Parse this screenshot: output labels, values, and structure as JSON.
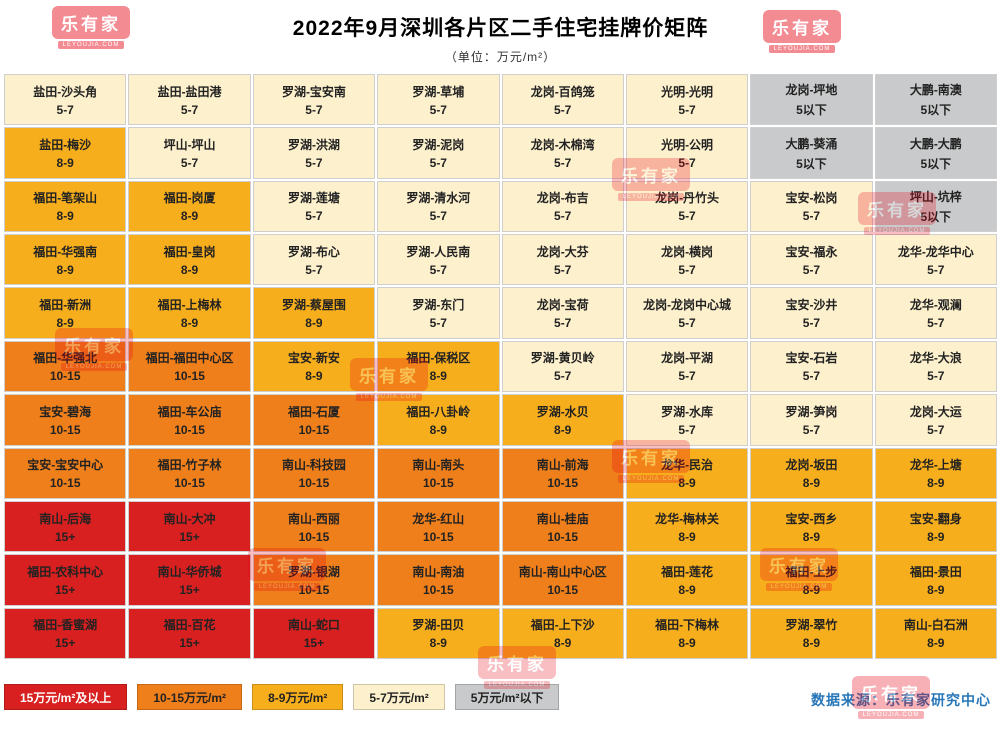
{
  "title": "2022年9月深圳各片区二手住宅挂牌价矩阵",
  "subtitle": "（单位：万元/m²）",
  "source": "数据来源：乐有家研究中心",
  "watermark": {
    "brand": "乐有家",
    "domain": "LEYOUJIA.COM"
  },
  "colors": {
    "t15": "#d7201f",
    "t10": "#ef7f1b",
    "t8": "#f7ae1c",
    "t5": "#fdf0cd",
    "t0": "#c9cacb",
    "cell_text": "#222222",
    "source_text": "#2777b8",
    "watermark_red": "#e60012"
  },
  "legend": [
    {
      "label": "15万元/m²及以上",
      "tier": "t15",
      "text": "#ffffff"
    },
    {
      "label": "10-15万元/m²",
      "tier": "t10",
      "text": "#222222"
    },
    {
      "label": "8-9万元/m²",
      "tier": "t8",
      "text": "#222222"
    },
    {
      "label": "5-7万元/m²",
      "tier": "t5",
      "text": "#222222"
    },
    {
      "label": "5万元/m²以下",
      "tier": "t0",
      "text": "#222222"
    }
  ],
  "chart_data": {
    "type": "heatmap",
    "title": "2022年9月深圳各片区二手住宅挂牌价矩阵",
    "unit": "万元/m²",
    "grid": {
      "rows": 11,
      "cols": 8
    },
    "legend_position": "bottom",
    "tiers": {
      "t15": "15万元/m²及以上",
      "t10": "10-15万元/m²",
      "t8": "8-9万元/m²",
      "t5": "5-7万元/m²",
      "t0": "5万元/m²以下"
    },
    "cells": [
      [
        {
          "area": "盐田-沙头角",
          "price": "5-7",
          "tier": "t5"
        },
        {
          "area": "盐田-盐田港",
          "price": "5-7",
          "tier": "t5"
        },
        {
          "area": "罗湖-宝安南",
          "price": "5-7",
          "tier": "t5"
        },
        {
          "area": "罗湖-草埔",
          "price": "5-7",
          "tier": "t5"
        },
        {
          "area": "龙岗-百鸽笼",
          "price": "5-7",
          "tier": "t5"
        },
        {
          "area": "光明-光明",
          "price": "5-7",
          "tier": "t5"
        },
        {
          "area": "龙岗-坪地",
          "price": "5以下",
          "tier": "t0"
        },
        {
          "area": "大鹏-南澳",
          "price": "5以下",
          "tier": "t0"
        }
      ],
      [
        {
          "area": "盐田-梅沙",
          "price": "8-9",
          "tier": "t8"
        },
        {
          "area": "坪山-坪山",
          "price": "5-7",
          "tier": "t5"
        },
        {
          "area": "罗湖-洪湖",
          "price": "5-7",
          "tier": "t5"
        },
        {
          "area": "罗湖-泥岗",
          "price": "5-7",
          "tier": "t5"
        },
        {
          "area": "龙岗-木棉湾",
          "price": "5-7",
          "tier": "t5"
        },
        {
          "area": "光明-公明",
          "price": "5-7",
          "tier": "t5"
        },
        {
          "area": "大鹏-葵涌",
          "price": "5以下",
          "tier": "t0"
        },
        {
          "area": "大鹏-大鹏",
          "price": "5以下",
          "tier": "t0"
        }
      ],
      [
        {
          "area": "福田-笔架山",
          "price": "8-9",
          "tier": "t8"
        },
        {
          "area": "福田-岗厦",
          "price": "8-9",
          "tier": "t8"
        },
        {
          "area": "罗湖-莲塘",
          "price": "5-7",
          "tier": "t5"
        },
        {
          "area": "罗湖-清水河",
          "price": "5-7",
          "tier": "t5"
        },
        {
          "area": "龙岗-布吉",
          "price": "5-7",
          "tier": "t5"
        },
        {
          "area": "龙岗-丹竹头",
          "price": "5-7",
          "tier": "t5"
        },
        {
          "area": "宝安-松岗",
          "price": "5-7",
          "tier": "t5"
        },
        {
          "area": "坪山-坑梓",
          "price": "5以下",
          "tier": "t0"
        }
      ],
      [
        {
          "area": "福田-华强南",
          "price": "8-9",
          "tier": "t8"
        },
        {
          "area": "福田-皇岗",
          "price": "8-9",
          "tier": "t8"
        },
        {
          "area": "罗湖-布心",
          "price": "5-7",
          "tier": "t5"
        },
        {
          "area": "罗湖-人民南",
          "price": "5-7",
          "tier": "t5"
        },
        {
          "area": "龙岗-大芬",
          "price": "5-7",
          "tier": "t5"
        },
        {
          "area": "龙岗-横岗",
          "price": "5-7",
          "tier": "t5"
        },
        {
          "area": "宝安-福永",
          "price": "5-7",
          "tier": "t5"
        },
        {
          "area": "龙华-龙华中心",
          "price": "5-7",
          "tier": "t5"
        }
      ],
      [
        {
          "area": "福田-新洲",
          "price": "8-9",
          "tier": "t8"
        },
        {
          "area": "福田-上梅林",
          "price": "8-9",
          "tier": "t8"
        },
        {
          "area": "罗湖-蔡屋围",
          "price": "8-9",
          "tier": "t8"
        },
        {
          "area": "罗湖-东门",
          "price": "5-7",
          "tier": "t5"
        },
        {
          "area": "龙岗-宝荷",
          "price": "5-7",
          "tier": "t5"
        },
        {
          "area": "龙岗-龙岗中心城",
          "price": "5-7",
          "tier": "t5"
        },
        {
          "area": "宝安-沙井",
          "price": "5-7",
          "tier": "t5"
        },
        {
          "area": "龙华-观澜",
          "price": "5-7",
          "tier": "t5"
        }
      ],
      [
        {
          "area": "福田-华强北",
          "price": "10-15",
          "tier": "t10"
        },
        {
          "area": "福田-福田中心区",
          "price": "10-15",
          "tier": "t10"
        },
        {
          "area": "宝安-新安",
          "price": "8-9",
          "tier": "t8"
        },
        {
          "area": "福田-保税区",
          "price": "8-9",
          "tier": "t8"
        },
        {
          "area": "罗湖-黄贝岭",
          "price": "5-7",
          "tier": "t5"
        },
        {
          "area": "龙岗-平湖",
          "price": "5-7",
          "tier": "t5"
        },
        {
          "area": "宝安-石岩",
          "price": "5-7",
          "tier": "t5"
        },
        {
          "area": "龙华-大浪",
          "price": "5-7",
          "tier": "t5"
        }
      ],
      [
        {
          "area": "宝安-碧海",
          "price": "10-15",
          "tier": "t10"
        },
        {
          "area": "福田-车公庙",
          "price": "10-15",
          "tier": "t10"
        },
        {
          "area": "福田-石厦",
          "price": "10-15",
          "tier": "t10"
        },
        {
          "area": "福田-八卦岭",
          "price": "8-9",
          "tier": "t8"
        },
        {
          "area": "罗湖-水贝",
          "price": "8-9",
          "tier": "t8"
        },
        {
          "area": "罗湖-水库",
          "price": "5-7",
          "tier": "t5"
        },
        {
          "area": "罗湖-笋岗",
          "price": "5-7",
          "tier": "t5"
        },
        {
          "area": "龙岗-大运",
          "price": "5-7",
          "tier": "t5"
        }
      ],
      [
        {
          "area": "宝安-宝安中心",
          "price": "10-15",
          "tier": "t10"
        },
        {
          "area": "福田-竹子林",
          "price": "10-15",
          "tier": "t10"
        },
        {
          "area": "南山-科技园",
          "price": "10-15",
          "tier": "t10"
        },
        {
          "area": "南山-南头",
          "price": "10-15",
          "tier": "t10"
        },
        {
          "area": "南山-前海",
          "price": "10-15",
          "tier": "t10"
        },
        {
          "area": "龙华-民治",
          "price": "8-9",
          "tier": "t8"
        },
        {
          "area": "龙岗-坂田",
          "price": "8-9",
          "tier": "t8"
        },
        {
          "area": "龙华-上塘",
          "price": "8-9",
          "tier": "t8"
        }
      ],
      [
        {
          "area": "南山-后海",
          "price": "15+",
          "tier": "t15"
        },
        {
          "area": "南山-大冲",
          "price": "15+",
          "tier": "t15"
        },
        {
          "area": "南山-西丽",
          "price": "10-15",
          "tier": "t10"
        },
        {
          "area": "龙华-红山",
          "price": "10-15",
          "tier": "t10"
        },
        {
          "area": "南山-桂庙",
          "price": "10-15",
          "tier": "t10"
        },
        {
          "area": "龙华-梅林关",
          "price": "8-9",
          "tier": "t8"
        },
        {
          "area": "宝安-西乡",
          "price": "8-9",
          "tier": "t8"
        },
        {
          "area": "宝安-翻身",
          "price": "8-9",
          "tier": "t8"
        }
      ],
      [
        {
          "area": "福田-农科中心",
          "price": "15+",
          "tier": "t15"
        },
        {
          "area": "南山-华侨城",
          "price": "15+",
          "tier": "t15"
        },
        {
          "area": "罗湖-银湖",
          "price": "10-15",
          "tier": "t10"
        },
        {
          "area": "南山-南油",
          "price": "10-15",
          "tier": "t10"
        },
        {
          "area": "南山-南山中心区",
          "price": "10-15",
          "tier": "t10"
        },
        {
          "area": "福田-莲花",
          "price": "8-9",
          "tier": "t8"
        },
        {
          "area": "福田-上步",
          "price": "8-9",
          "tier": "t8"
        },
        {
          "area": "福田-景田",
          "price": "8-9",
          "tier": "t8"
        }
      ],
      [
        {
          "area": "福田-香蜜湖",
          "price": "15+",
          "tier": "t15"
        },
        {
          "area": "福田-百花",
          "price": "15+",
          "tier": "t15"
        },
        {
          "area": "南山-蛇口",
          "price": "15+",
          "tier": "t15"
        },
        {
          "area": "罗湖-田贝",
          "price": "8-9",
          "tier": "t8"
        },
        {
          "area": "福田-上下沙",
          "price": "8-9",
          "tier": "t8"
        },
        {
          "area": "福田-下梅林",
          "price": "8-9",
          "tier": "t8"
        },
        {
          "area": "罗湖-翠竹",
          "price": "8-9",
          "tier": "t8"
        },
        {
          "area": "南山-白石洲",
          "price": "8-9",
          "tier": "t8"
        }
      ]
    ]
  }
}
